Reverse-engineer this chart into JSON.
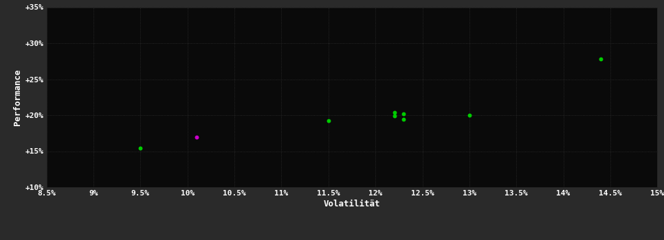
{
  "background_color": "#2a2a2a",
  "plot_bg_color": "#0a0a0a",
  "text_color": "#ffffff",
  "xlabel": "Volatilität",
  "ylabel": "Performance",
  "xlim": [
    0.085,
    0.15
  ],
  "ylim": [
    0.1,
    0.35
  ],
  "xticks": [
    0.085,
    0.09,
    0.095,
    0.1,
    0.105,
    0.11,
    0.115,
    0.12,
    0.125,
    0.13,
    0.135,
    0.14,
    0.145,
    0.15
  ],
  "yticks": [
    0.1,
    0.15,
    0.2,
    0.25,
    0.3,
    0.35
  ],
  "ytick_labels": [
    "+10%",
    "+15%",
    "+20%",
    "+25%",
    "+30%",
    "+35%"
  ],
  "xtick_labels": [
    "8.5%",
    "9%",
    "9.5%",
    "10%",
    "10.5%",
    "11%",
    "11.5%",
    "12%",
    "12.5%",
    "13%",
    "13.5%",
    "14%",
    "14.5%",
    "15%"
  ],
  "green_points": [
    [
      0.095,
      0.154
    ],
    [
      0.115,
      0.192
    ],
    [
      0.122,
      0.204
    ],
    [
      0.122,
      0.199
    ],
    [
      0.123,
      0.194
    ],
    [
      0.123,
      0.202
    ],
    [
      0.13,
      0.2
    ],
    [
      0.144,
      0.278
    ]
  ],
  "magenta_points": [
    [
      0.101,
      0.17
    ]
  ],
  "point_size": 18,
  "green_color": "#00cc00",
  "magenta_color": "#cc00cc",
  "grid_color": "#303030",
  "grid_linestyle": ":",
  "grid_linewidth": 0.6
}
